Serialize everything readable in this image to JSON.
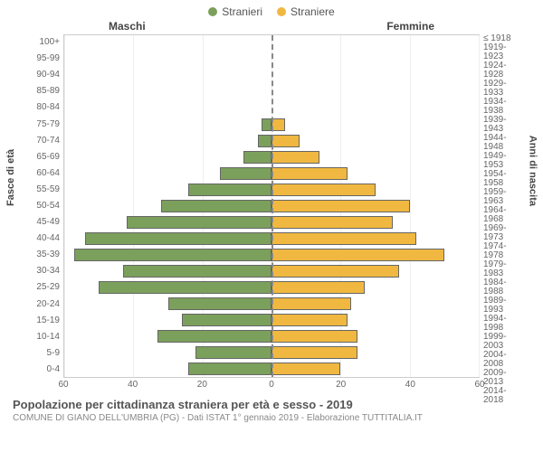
{
  "chart": {
    "type": "population-pyramid",
    "legend": {
      "male": {
        "label": "Stranieri",
        "color": "#7ba05b"
      },
      "female": {
        "label": "Straniere",
        "color": "#f0b840"
      }
    },
    "columnTitles": {
      "male": "Maschi",
      "female": "Femmine"
    },
    "yAxisLeft": {
      "label": "Fasce di età"
    },
    "yAxisRight": {
      "label": "Anni di nascita"
    },
    "xMax": 60,
    "xTicks": [
      60,
      40,
      20,
      0,
      20,
      40,
      60
    ],
    "gridColor": "#eeeeee",
    "borderColor": "#cccccc",
    "centerLineColor": "#888888",
    "background": "#ffffff",
    "barBorder": "#666666",
    "rows": [
      {
        "age": "100+",
        "birth": "≤ 1918",
        "m": 0,
        "f": 0
      },
      {
        "age": "95-99",
        "birth": "1919-1923",
        "m": 0,
        "f": 0
      },
      {
        "age": "90-94",
        "birth": "1924-1928",
        "m": 0,
        "f": 0
      },
      {
        "age": "85-89",
        "birth": "1929-1933",
        "m": 0,
        "f": 0
      },
      {
        "age": "80-84",
        "birth": "1934-1938",
        "m": 0,
        "f": 0
      },
      {
        "age": "75-79",
        "birth": "1939-1943",
        "m": 3,
        "f": 4
      },
      {
        "age": "70-74",
        "birth": "1944-1948",
        "m": 4,
        "f": 8
      },
      {
        "age": "65-69",
        "birth": "1949-1953",
        "m": 8,
        "f": 14
      },
      {
        "age": "60-64",
        "birth": "1954-1958",
        "m": 15,
        "f": 22
      },
      {
        "age": "55-59",
        "birth": "1959-1963",
        "m": 24,
        "f": 30
      },
      {
        "age": "50-54",
        "birth": "1964-1968",
        "m": 32,
        "f": 40
      },
      {
        "age": "45-49",
        "birth": "1969-1973",
        "m": 42,
        "f": 35
      },
      {
        "age": "40-44",
        "birth": "1974-1978",
        "m": 54,
        "f": 42
      },
      {
        "age": "35-39",
        "birth": "1979-1983",
        "m": 57,
        "f": 50
      },
      {
        "age": "30-34",
        "birth": "1984-1988",
        "m": 43,
        "f": 37
      },
      {
        "age": "25-29",
        "birth": "1989-1993",
        "m": 50,
        "f": 27
      },
      {
        "age": "20-24",
        "birth": "1994-1998",
        "m": 30,
        "f": 23
      },
      {
        "age": "15-19",
        "birth": "1999-2003",
        "m": 26,
        "f": 22
      },
      {
        "age": "10-14",
        "birth": "2004-2008",
        "m": 33,
        "f": 25
      },
      {
        "age": "5-9",
        "birth": "2009-2013",
        "m": 22,
        "f": 25
      },
      {
        "age": "0-4",
        "birth": "2014-2018",
        "m": 24,
        "f": 20
      }
    ]
  },
  "footer": {
    "title": "Popolazione per cittadinanza straniera per età e sesso - 2019",
    "subtitle": "COMUNE DI GIANO DELL'UMBRIA (PG) - Dati ISTAT 1° gennaio 2019 - Elaborazione TUTTITALIA.IT"
  }
}
